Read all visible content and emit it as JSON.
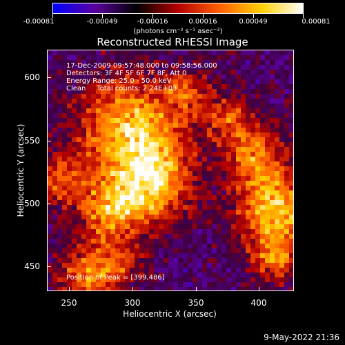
{
  "colorbar": {
    "ticks": [
      "-0.00081",
      "-0.00049",
      "-0.00016",
      "0.00016",
      "0.00049",
      "0.00081"
    ],
    "unit_label": "(photons cm⁻² s⁻¹ asec⁻²)",
    "gradient_colors": [
      "#0000ff",
      "#5a00a0",
      "#000000",
      "#b40000",
      "#ff6000",
      "#ffd000",
      "#ffffff"
    ]
  },
  "title": "Reconstructed RHESSI Image",
  "info": {
    "time": "17-Dec-2009 09:57:48.000 to 09:58:56.000",
    "detectors": "Detectors: 3F 4F 5F 6F 7F 8F, Att 0",
    "energy": "Energy Range: 25.0 - 50.0 keV",
    "clean": "Clean     Total counts: 2.24E+03"
  },
  "peak": "Position of Peak = [399,486]",
  "axes": {
    "xlabel": "Heliocentric X (arcsec)",
    "ylabel": "Heliocentric Y (arcsec)",
    "xticks": [
      "250",
      "300",
      "350",
      "400"
    ],
    "yticks": [
      "450",
      "500",
      "550",
      "600"
    ]
  },
  "timestamp": "9-May-2022 21:36"
}
